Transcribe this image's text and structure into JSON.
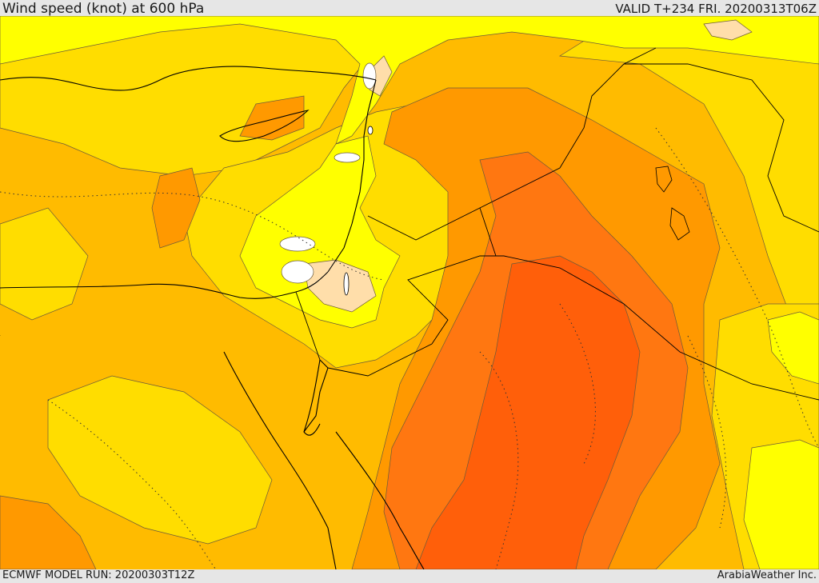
{
  "header": {
    "title": "Wind speed (knot) at 600 hPa",
    "valid": "VALID T+234 FRI. 20200313T06Z"
  },
  "footer": {
    "model_run": "ECMWF MODEL RUN: 20200303T12Z",
    "credit": "ArabiaWeather Inc."
  },
  "colors": {
    "frame": "#e6e6e6",
    "band_pale": "#ffdeaa",
    "band_yellow": "#ffff00",
    "band_lightorange": "#ffdd00",
    "band_amber": "#ffbb00",
    "band_orange": "#ff9900",
    "band_deeporange": "#ff7711",
    "band_red": "#ff5f0a",
    "borders": "#000000",
    "contours": "#5a4a3a"
  }
}
